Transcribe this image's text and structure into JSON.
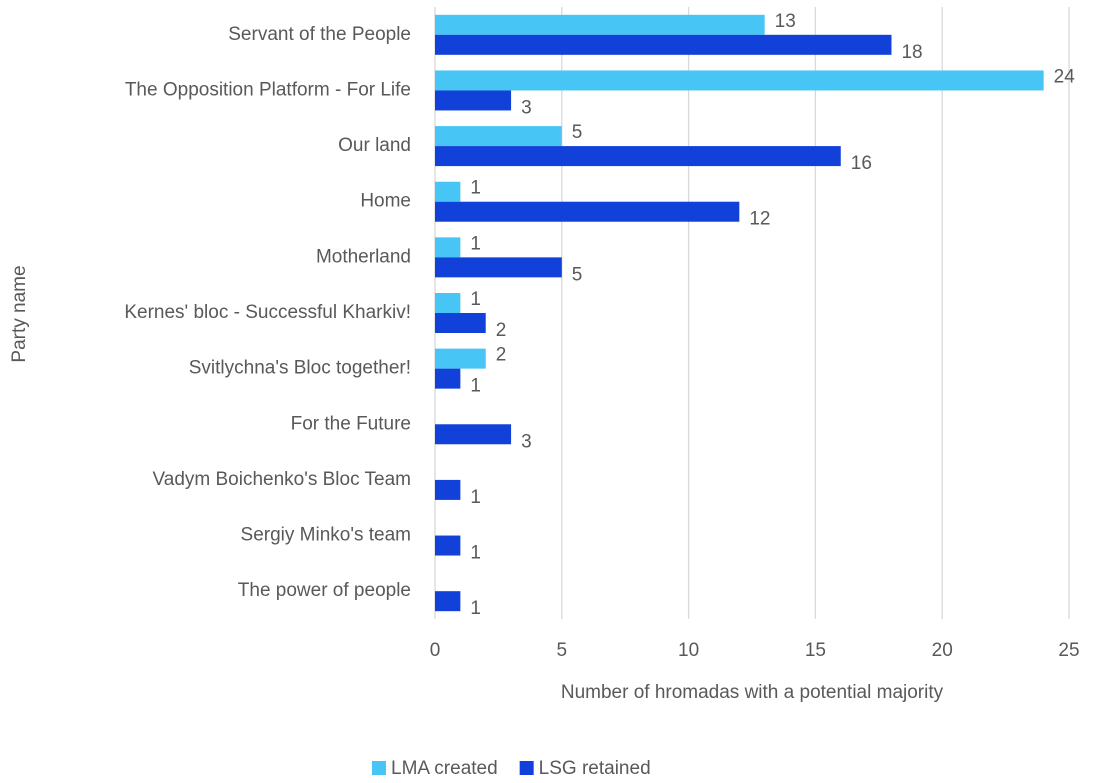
{
  "chart_data": {
    "type": "hbar",
    "x_label": "Number of hromadas with a potential majority",
    "y_label": "Party name",
    "categories": [
      "Servant of the People",
      "The Opposition Platform - For Life",
      "Our land",
      "Home",
      "Motherland",
      "Kernes' bloc - Successful Kharkiv!",
      "Svitlychna's Bloc together!",
      "For the Future",
      "Vadym Boichenko's Bloc Team ",
      "Sergiy Minko's team",
      "The power of people"
    ],
    "series": [
      {
        "name": "LMA created",
        "color": "#47c6f5",
        "values": [
          13,
          24,
          5,
          1,
          1,
          1,
          2,
          null,
          null,
          null,
          null
        ]
      },
      {
        "name": "LSG retained",
        "color": "#1141d8",
        "values": [
          18,
          3,
          16,
          12,
          5,
          2,
          1,
          3,
          1,
          1,
          1
        ]
      }
    ],
    "xlim": [
      0,
      25
    ],
    "xticks": [
      0,
      5,
      10,
      15,
      20,
      25
    ],
    "grid": true,
    "legend": "bottom"
  }
}
